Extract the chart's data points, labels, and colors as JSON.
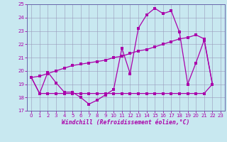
{
  "xlabel": "Windchill (Refroidissement éolien,°C)",
  "xlim": [
    -0.5,
    23.5
  ],
  "ylim": [
    17,
    25
  ],
  "yticks": [
    17,
    18,
    19,
    20,
    21,
    22,
    23,
    24,
    25
  ],
  "xticks": [
    0,
    1,
    2,
    3,
    4,
    5,
    6,
    7,
    8,
    9,
    10,
    11,
    12,
    13,
    14,
    15,
    16,
    17,
    18,
    19,
    20,
    21,
    22,
    23
  ],
  "bg_color": "#c8e8f0",
  "line_color": "#aa00aa",
  "grid_color": "#9999bb",
  "line1_x": [
    0,
    1,
    2,
    3,
    4,
    5,
    6,
    7,
    8,
    9,
    10,
    11,
    12,
    13,
    14,
    15,
    16,
    17,
    18,
    19,
    20,
    21,
    22
  ],
  "line1_y": [
    19.5,
    18.3,
    19.9,
    19.1,
    18.4,
    18.4,
    18.0,
    17.5,
    17.8,
    18.2,
    18.6,
    21.7,
    19.8,
    23.2,
    24.2,
    24.7,
    24.3,
    24.5,
    22.9,
    19.0,
    20.6,
    22.3,
    19.0
  ],
  "line2_x": [
    0,
    1,
    2,
    3,
    4,
    5,
    6,
    7,
    8,
    9,
    10,
    11,
    12,
    13,
    14,
    15,
    16,
    17,
    18,
    19,
    20,
    21,
    22
  ],
  "line2_y": [
    19.5,
    19.6,
    19.8,
    20.0,
    20.2,
    20.4,
    20.5,
    20.6,
    20.7,
    20.8,
    21.0,
    21.1,
    21.3,
    21.5,
    21.6,
    21.8,
    22.0,
    22.2,
    22.4,
    22.5,
    22.7,
    22.4,
    19.0
  ],
  "line3_x": [
    0,
    1,
    2,
    3,
    4,
    5,
    6,
    7,
    8,
    9,
    10,
    11,
    12,
    13,
    14,
    15,
    16,
    17,
    18,
    19,
    20,
    21,
    22
  ],
  "line3_y": [
    19.5,
    18.3,
    18.3,
    18.3,
    18.3,
    18.3,
    18.3,
    18.3,
    18.3,
    18.3,
    18.3,
    18.3,
    18.3,
    18.3,
    18.3,
    18.3,
    18.3,
    18.3,
    18.3,
    18.3,
    18.3,
    18.3,
    19.0
  ]
}
